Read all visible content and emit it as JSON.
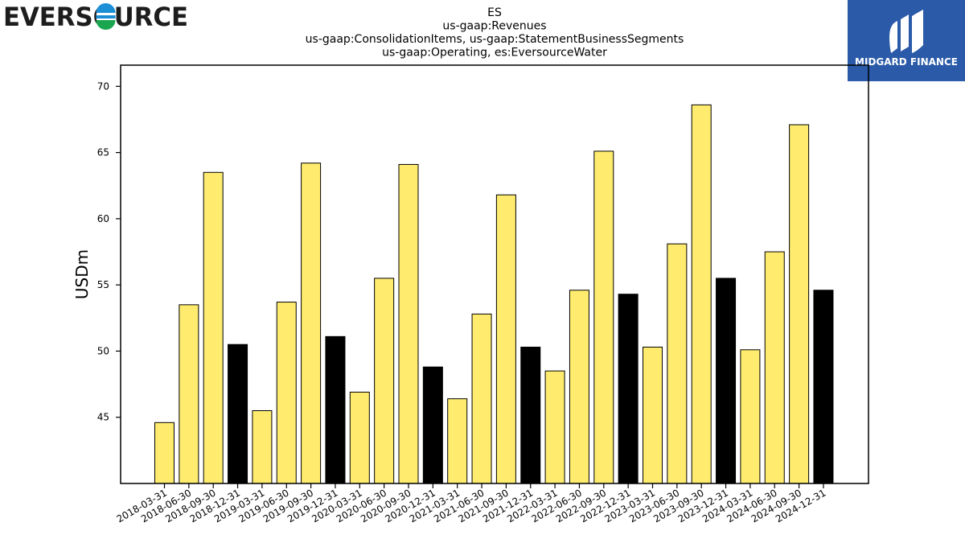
{
  "header": {
    "left_logo_text": "EVERSOURCE",
    "right_logo_text": "MIDGARD FINANCE"
  },
  "chart_data": {
    "type": "bar",
    "title_lines": [
      "ES",
      "us-gaap:Revenues",
      "us-gaap:ConsolidationItems, us-gaap:StatementBusinessSegments",
      "us-gaap:Operating, es:EversourceWater"
    ],
    "xlabel": "",
    "ylabel": "USDm",
    "ylim": [
      40.0,
      71.6
    ],
    "yticks": [
      45,
      50,
      55,
      60,
      65,
      70
    ],
    "categories": [
      "2018-03-31",
      "2018-06-30",
      "2018-09-30",
      "2018-12-31",
      "2019-03-31",
      "2019-06-30",
      "2019-09-30",
      "2019-12-31",
      "2020-03-31",
      "2020-06-30",
      "2020-09-30",
      "2020-12-31",
      "2021-03-31",
      "2021-06-30",
      "2021-09-30",
      "2021-12-31",
      "2022-03-31",
      "2022-06-30",
      "2022-09-30",
      "2022-12-31",
      "2023-03-31",
      "2023-06-30",
      "2023-09-30",
      "2023-12-31",
      "2024-03-31",
      "2024-06-30",
      "2024-09-30",
      "2024-12-31"
    ],
    "values": [
      44.6,
      53.5,
      63.5,
      50.5,
      45.5,
      53.7,
      64.2,
      51.1,
      46.9,
      55.5,
      64.1,
      48.8,
      46.4,
      52.8,
      61.8,
      50.3,
      48.5,
      54.6,
      65.1,
      54.3,
      50.3,
      58.1,
      68.6,
      55.5,
      50.1,
      57.5,
      67.1,
      54.6
    ],
    "colors": {
      "quarter": "#ffec6e",
      "year_end": "#000000",
      "edge": "#000000"
    },
    "grid": false,
    "legend": "none"
  }
}
